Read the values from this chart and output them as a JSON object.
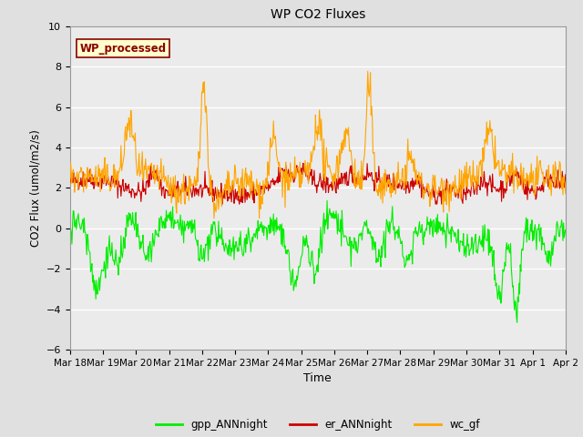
{
  "title": "WP CO2 Fluxes",
  "xlabel": "Time",
  "ylabel": "CO2 Flux (umol/m2/s)",
  "ylim": [
    -6,
    10
  ],
  "annotation_text": "WP_processed",
  "annotation_color": "#8B0000",
  "annotation_bgcolor": "#FFFFCC",
  "annotation_edgecolor": "#8B0000",
  "legend_labels": [
    "gpp_ANNnight",
    "er_ANNnight",
    "wc_gf"
  ],
  "line_colors": [
    "#00EE00",
    "#CC0000",
    "#FFA500"
  ],
  "bg_color": "#E0E0E0",
  "plot_bg_color": "#EBEBEB",
  "x_start_day": 18,
  "x_end_day": 33,
  "xtick_labels": [
    "Mar 18",
    "Mar 19",
    "Mar 20",
    "Mar 21",
    "Mar 22",
    "Mar 23",
    "Mar 24",
    "Mar 25",
    "Mar 26",
    "Mar 27",
    "Mar 28",
    "Mar 29",
    "Mar 30",
    "Mar 31",
    "Apr 1",
    "Apr 2"
  ],
  "xtick_positions": [
    18,
    19,
    20,
    21,
    22,
    23,
    24,
    25,
    26,
    27,
    28,
    29,
    30,
    31,
    32,
    33
  ],
  "ytick_positions": [
    -6,
    -4,
    -2,
    0,
    2,
    4,
    6,
    8,
    10
  ],
  "grid_color": "#FFFFFF",
  "linewidth": 0.8,
  "seed": 42
}
